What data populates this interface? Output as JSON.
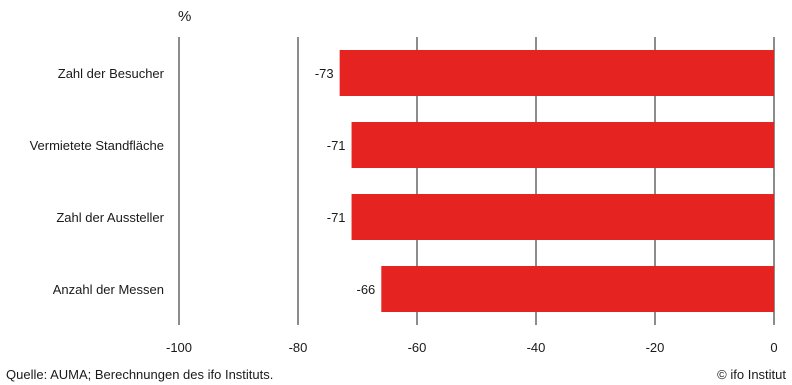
{
  "chart_data": {
    "type": "bar",
    "orientation": "horizontal",
    "unit_label": "%",
    "categories": [
      "Zahl der Besucher",
      "Vermietete Standfläche",
      "Zahl der Aussteller",
      "Anzahl der Messen"
    ],
    "values": [
      -73,
      -71,
      -71,
      -66
    ],
    "data_labels": [
      "-73",
      "-71",
      "-71",
      "-66"
    ],
    "xlim": [
      -100,
      0
    ],
    "x_ticks": [
      -100,
      -80,
      -60,
      -40,
      -20,
      0
    ],
    "x_tick_labels": [
      "-100",
      "-80",
      "-60",
      "-40",
      "-20",
      "0"
    ],
    "bar_color": "#e52421",
    "grid": true
  },
  "footer": {
    "source": "Quelle: AUMA; Berechnungen des ifo Instituts.",
    "copyright": "© ifo Institut"
  }
}
